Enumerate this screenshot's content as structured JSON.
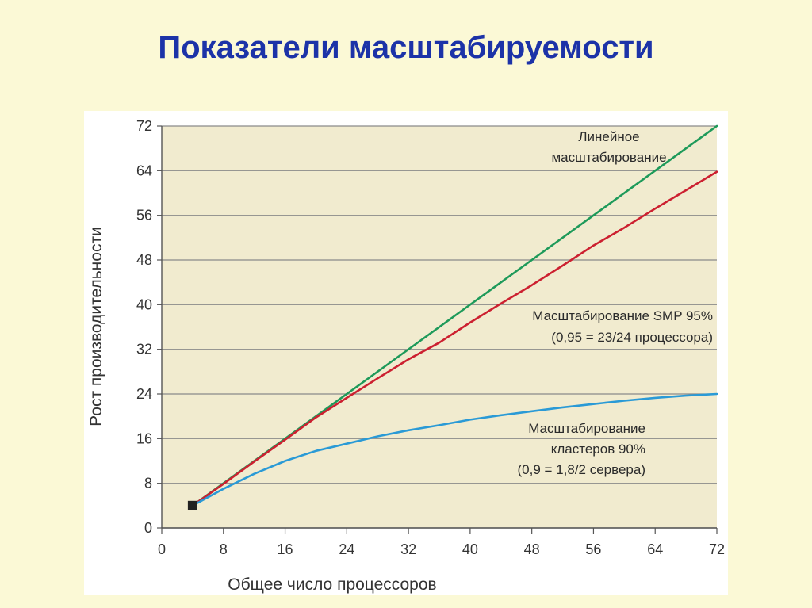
{
  "slide": {
    "title": "Показатели масштабируемости"
  },
  "chart_data": {
    "type": "line",
    "title": "",
    "xlabel": "Общее число процессоров",
    "ylabel": "Рост производительности",
    "xlim": [
      0,
      72
    ],
    "ylim": [
      0,
      72
    ],
    "xticks": [
      0,
      8,
      16,
      24,
      32,
      40,
      48,
      56,
      64,
      72
    ],
    "yticks": [
      0,
      8,
      16,
      24,
      32,
      40,
      48,
      56,
      64,
      72
    ],
    "grid": "horizontal",
    "legend": "none",
    "start_marker": {
      "x": 4,
      "y": 4
    },
    "series": [
      {
        "name": "",
        "color": "#1e9a5a",
        "x": [
          4,
          72
        ],
        "y": [
          4,
          72
        ]
      },
      {
        "name": "",
        "color": "#cc2030",
        "x": [
          4,
          8,
          12,
          16,
          20,
          24,
          28,
          32,
          36,
          40,
          44,
          48,
          52,
          56,
          60,
          64,
          68,
          72
        ],
        "y": [
          4,
          7.9,
          11.9,
          15.8,
          19.8,
          23.3,
          26.8,
          30.2,
          33.2,
          36.8,
          40.2,
          43.5,
          47,
          50.6,
          53.8,
          57.2,
          60.5,
          63.8
        ]
      },
      {
        "name": "",
        "color": "#2a9ad6",
        "x": [
          4,
          8,
          12,
          16,
          20,
          24,
          28,
          32,
          36,
          40,
          44,
          48,
          52,
          56,
          60,
          64,
          68,
          72
        ],
        "y": [
          4,
          7,
          9.7,
          12,
          13.8,
          15.1,
          16.4,
          17.5,
          18.4,
          19.4,
          20.2,
          20.9,
          21.6,
          22.2,
          22.8,
          23.3,
          23.7,
          24
        ]
      }
    ],
    "annotations": [
      {
        "lines": [
          "Линейное",
          "масштабирование"
        ]
      },
      {
        "lines": [
          "Масштабирование SMP 95%",
          "(0,95 = 23/24 процессора)"
        ]
      },
      {
        "lines": [
          "Масштабирование",
          "кластеров 90%",
          "(0,9 = 1,8/2 сервера)"
        ]
      }
    ]
  }
}
